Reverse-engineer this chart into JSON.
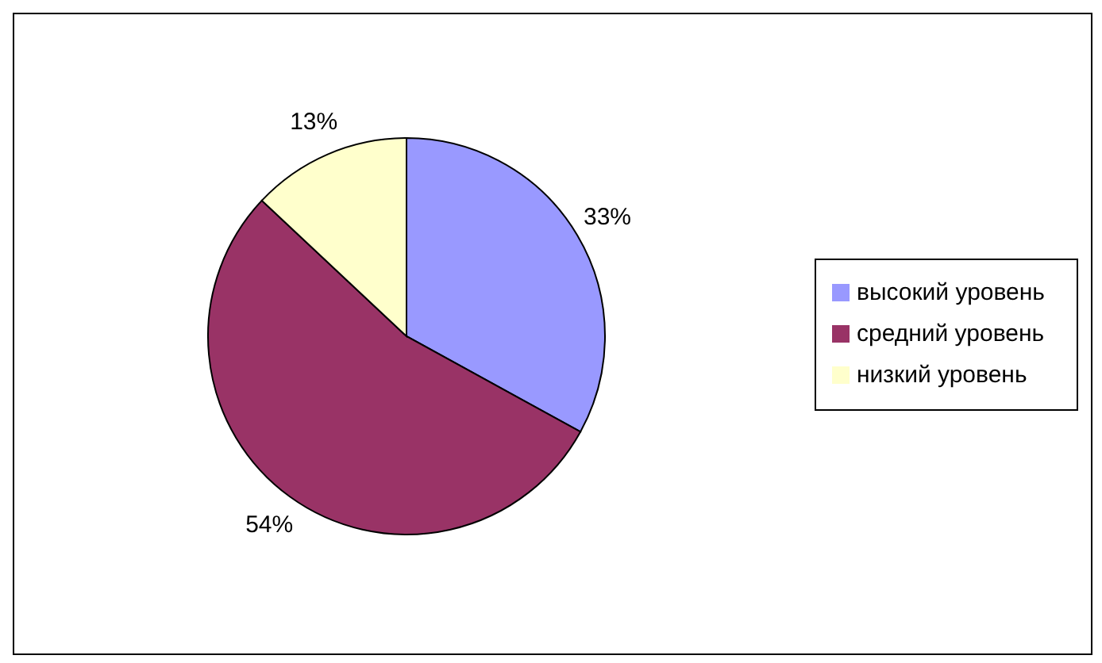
{
  "chart_data": {
    "type": "pie",
    "categories": [
      "высокий уровень",
      "средний уровень",
      "низкий уровень"
    ],
    "values": [
      33,
      54,
      13
    ],
    "colors": [
      "#9999ff",
      "#993366",
      "#ffffcc"
    ],
    "value_labels": [
      "33%",
      "54%",
      "13%"
    ],
    "legend": "right"
  }
}
